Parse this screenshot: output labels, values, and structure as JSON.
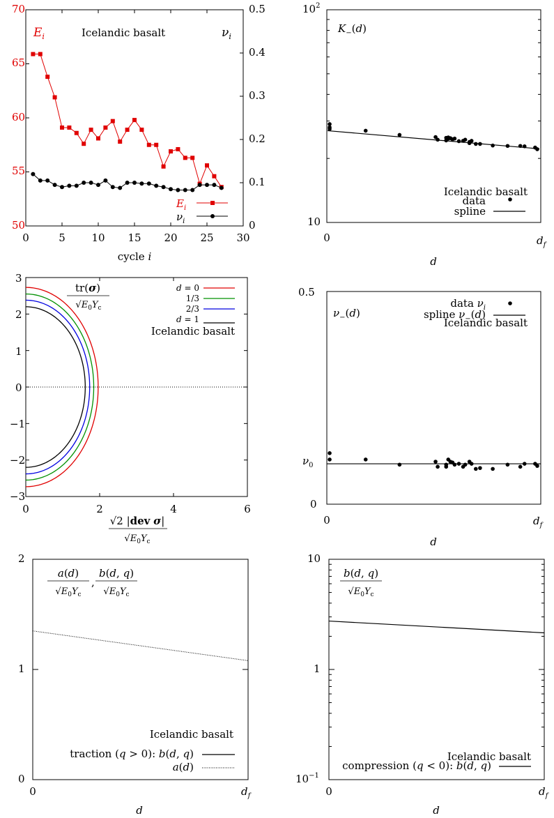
{
  "colors": {
    "red": "#e00000",
    "black": "#000000",
    "green": "#009000",
    "blue": "#0000e0"
  },
  "chart_data": [
    {
      "id": "p1",
      "type": "line",
      "annotation": "Icelandic basalt",
      "y_left_label": "E_i",
      "y_right_label": "ν_i",
      "xlabel": "cycle i",
      "xlim": [
        0,
        30
      ],
      "ylim_left": [
        50,
        70
      ],
      "ylim_right": [
        0,
        0.5
      ],
      "x_ticks": [
        "0",
        "5",
        "10",
        "15",
        "20",
        "25",
        "30"
      ],
      "y_left_ticks": [
        "50",
        "55",
        "60",
        "65",
        "70"
      ],
      "y_right_ticks": [
        "0",
        "0.1",
        "0.2",
        "0.3",
        "0.4",
        "0.5"
      ],
      "legend": [
        "E_i",
        "ν_i"
      ],
      "series": [
        {
          "name": "E_i",
          "axis": "left",
          "color": "#e00000",
          "marker": "square",
          "x": [
            1,
            2,
            3,
            4,
            5,
            6,
            7,
            8,
            9,
            10,
            11,
            12,
            13,
            14,
            15,
            16,
            17,
            18,
            19,
            20,
            21,
            22,
            23,
            24,
            25,
            26,
            27
          ],
          "values": [
            65.9,
            65.9,
            63.8,
            61.9,
            59.1,
            59.1,
            58.6,
            57.6,
            58.9,
            58.1,
            59.1,
            59.7,
            57.8,
            58.9,
            59.8,
            58.9,
            57.5,
            57.5,
            55.5,
            56.9,
            57.1,
            56.3,
            56.3,
            53.9,
            55.6,
            54.6,
            53.6
          ]
        },
        {
          "name": "ν_i",
          "axis": "right",
          "color": "#000000",
          "marker": "circle",
          "x": [
            1,
            2,
            3,
            4,
            5,
            6,
            7,
            8,
            9,
            10,
            11,
            12,
            13,
            14,
            15,
            16,
            17,
            18,
            19,
            20,
            21,
            22,
            23,
            24,
            25,
            26,
            27
          ],
          "values": [
            0.12,
            0.105,
            0.105,
            0.095,
            0.09,
            0.093,
            0.093,
            0.1,
            0.1,
            0.095,
            0.105,
            0.09,
            0.088,
            0.1,
            0.1,
            0.098,
            0.098,
            0.093,
            0.09,
            0.085,
            0.083,
            0.083,
            0.083,
            0.095,
            0.095,
            0.095,
            0.088
          ]
        }
      ]
    },
    {
      "id": "p2",
      "type": "scatter",
      "title": "K_−(d)",
      "annotation": "Icelandic basalt",
      "xlabel": "d",
      "x_ticks": [
        "0",
        "d_f"
      ],
      "y_ticks": [
        "10",
        "10^2"
      ],
      "yscale": "log",
      "ylim": [
        10,
        100
      ],
      "legend": [
        "data",
        "spline"
      ],
      "points_x": [
        0.01,
        0.01,
        0.01,
        0.18,
        0.34,
        0.51,
        0.52,
        0.56,
        0.56,
        0.57,
        0.57,
        0.58,
        0.59,
        0.6,
        0.62,
        0.64,
        0.65,
        0.67,
        0.67,
        0.68,
        0.7,
        0.72,
        0.78,
        0.85,
        0.91,
        0.93,
        0.98,
        0.99
      ],
      "points_y": [
        29,
        28,
        27.5,
        27,
        25.8,
        25.2,
        24.5,
        24.3,
        25,
        24.8,
        25.1,
        24.9,
        24.6,
        24.8,
        24.1,
        24.2,
        24.5,
        23.6,
        23.9,
        24.2,
        23.4,
        23.4,
        23,
        22.9,
        22.9,
        22.8,
        22.5,
        22.1
      ],
      "spline_x": [
        0,
        1
      ],
      "spline_y": [
        27,
        22.2
      ]
    },
    {
      "id": "p3",
      "type": "line",
      "ylabel": "tr(σ)/√(E_0 Y_c)",
      "xlabel": "√2 |dev σ| / √(E_0 Y_c)",
      "annotation": "Icelandic basalt",
      "xlim": [
        0,
        6
      ],
      "ylim": [
        -3,
        3
      ],
      "x_ticks": [
        "0",
        "2",
        "4",
        "6"
      ],
      "y_ticks": [
        "3",
        "2",
        "1",
        "0",
        "−1",
        "−2",
        "−3"
      ],
      "legend": [
        "d = 0",
        "1/3",
        "2/3",
        "d = 1"
      ],
      "series": [
        {
          "name": "d = 0",
          "color": "#e00000",
          "a": 1.96,
          "b": 2.73
        },
        {
          "name": "1/3",
          "color": "#009000",
          "a": 1.84,
          "b": 2.55
        },
        {
          "name": "2/3",
          "color": "#0000e0",
          "a": 1.73,
          "b": 2.38
        },
        {
          "name": "d = 1",
          "color": "#000000",
          "a": 1.61,
          "b": 2.2
        }
      ]
    },
    {
      "id": "p4",
      "type": "scatter",
      "title": "ν_−(d)",
      "annotation": "Icelandic basalt",
      "xlabel": "d",
      "x_ticks": [
        "0",
        "d_f"
      ],
      "y_ticks": [
        "0.5",
        "ν_0",
        "0"
      ],
      "ylim": [
        0,
        0.5
      ],
      "legend": [
        "data ν_i",
        "spline ν_−(d)"
      ],
      "nu0": 0.095,
      "points_x": [
        0.01,
        0.01,
        0.18,
        0.34,
        0.51,
        0.52,
        0.56,
        0.56,
        0.57,
        0.58,
        0.59,
        0.6,
        0.62,
        0.64,
        0.65,
        0.67,
        0.68,
        0.7,
        0.72,
        0.78,
        0.85,
        0.91,
        0.93,
        0.98,
        0.99
      ],
      "points_y": [
        0.12,
        0.105,
        0.105,
        0.093,
        0.1,
        0.088,
        0.088,
        0.093,
        0.105,
        0.1,
        0.098,
        0.093,
        0.095,
        0.088,
        0.093,
        0.1,
        0.095,
        0.083,
        0.085,
        0.083,
        0.093,
        0.088,
        0.095,
        0.095,
        0.09
      ],
      "spline_x": [
        0,
        1
      ],
      "spline_y": [
        0.095,
        0.095
      ]
    },
    {
      "id": "p5",
      "type": "line",
      "ylabel": "a(d)/√(E_0 Y_c), b(d,q)/√(E_0 Y_c)",
      "annotation": "Icelandic basalt",
      "xlabel": "d",
      "x_ticks": [
        "0",
        "d_f"
      ],
      "y_ticks": [
        "2",
        "1",
        "0"
      ],
      "ylim": [
        0,
        2
      ],
      "legend": [
        "traction (q > 0): b(d, q)",
        "a(d)"
      ],
      "series": [
        {
          "name": "a(d)",
          "style": "dotted",
          "x": [
            0,
            1
          ],
          "values": [
            1.35,
            1.08
          ]
        }
      ]
    },
    {
      "id": "p6",
      "type": "line",
      "ylabel": "b(d,q)/√(E_0 Y_c)",
      "annotation": "Icelandic basalt",
      "xlabel": "d",
      "x_ticks": [
        "0",
        "d_f"
      ],
      "y_ticks": [
        "10",
        "1",
        "10^−1"
      ],
      "yscale": "log",
      "ylim": [
        0.1,
        10
      ],
      "legend": [
        "compression (q < 0): b(d, q)"
      ],
      "series": [
        {
          "name": "compression (q < 0): b(d, q)",
          "style": "solid",
          "x": [
            0,
            1
          ],
          "values": [
            2.75,
            2.15
          ]
        }
      ]
    }
  ]
}
